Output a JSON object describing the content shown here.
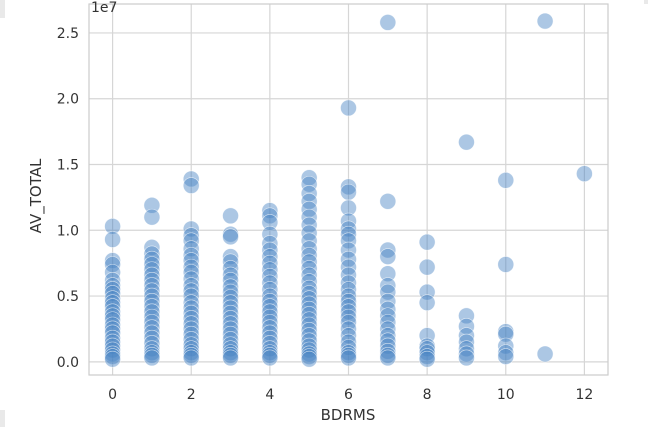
{
  "chart_data": {
    "type": "scatter",
    "title": "",
    "xlabel": "BDRMS",
    "ylabel": "AV_TOTAL",
    "y_offset_label": "1e7",
    "xlim": [
      -0.6,
      12.6
    ],
    "ylim": [
      -0.1,
      2.72
    ],
    "x_ticks": [
      0,
      2,
      4,
      6,
      8,
      10,
      12
    ],
    "x_tick_labels": [
      "0",
      "2",
      "4",
      "6",
      "8",
      "10",
      "12"
    ],
    "y_ticks": [
      0.0,
      0.5,
      1.0,
      1.5,
      2.0,
      2.5
    ],
    "y_tick_labels": [
      "0.0",
      "0.5",
      "1.0",
      "1.5",
      "2.0",
      "2.5"
    ],
    "grid": true,
    "marker_color": "#4682c4",
    "series": [
      {
        "values": [
          [
            0,
            1.03
          ],
          [
            0,
            0.93
          ],
          [
            0,
            0.77
          ],
          [
            0,
            0.74
          ],
          [
            0,
            0.68
          ],
          [
            0,
            0.62
          ],
          [
            0,
            0.58
          ],
          [
            0,
            0.55
          ],
          [
            0,
            0.52
          ],
          [
            0,
            0.48
          ],
          [
            0,
            0.45
          ],
          [
            0,
            0.42
          ],
          [
            0,
            0.38
          ],
          [
            0,
            0.35
          ],
          [
            0,
            0.32
          ],
          [
            0,
            0.28
          ],
          [
            0,
            0.25
          ],
          [
            0,
            0.22
          ],
          [
            0,
            0.18
          ],
          [
            0,
            0.15
          ],
          [
            0,
            0.12
          ],
          [
            0,
            0.09
          ],
          [
            0,
            0.06
          ],
          [
            0,
            0.04
          ],
          [
            0,
            0.02
          ],
          [
            1,
            1.19
          ],
          [
            1,
            1.1
          ],
          [
            1,
            0.87
          ],
          [
            1,
            0.82
          ],
          [
            1,
            0.78
          ],
          [
            1,
            0.74
          ],
          [
            1,
            0.7
          ],
          [
            1,
            0.66
          ],
          [
            1,
            0.62
          ],
          [
            1,
            0.58
          ],
          [
            1,
            0.54
          ],
          [
            1,
            0.5
          ],
          [
            1,
            0.46
          ],
          [
            1,
            0.42
          ],
          [
            1,
            0.38
          ],
          [
            1,
            0.34
          ],
          [
            1,
            0.3
          ],
          [
            1,
            0.26
          ],
          [
            1,
            0.22
          ],
          [
            1,
            0.18
          ],
          [
            1,
            0.14
          ],
          [
            1,
            0.1
          ],
          [
            1,
            0.07
          ],
          [
            1,
            0.05
          ],
          [
            1,
            0.03
          ],
          [
            2,
            1.39
          ],
          [
            2,
            1.34
          ],
          [
            2,
            1.01
          ],
          [
            2,
            0.96
          ],
          [
            2,
            0.92
          ],
          [
            2,
            0.86
          ],
          [
            2,
            0.81
          ],
          [
            2,
            0.77
          ],
          [
            2,
            0.72
          ],
          [
            2,
            0.68
          ],
          [
            2,
            0.63
          ],
          [
            2,
            0.58
          ],
          [
            2,
            0.54
          ],
          [
            2,
            0.5
          ],
          [
            2,
            0.45
          ],
          [
            2,
            0.41
          ],
          [
            2,
            0.37
          ],
          [
            2,
            0.33
          ],
          [
            2,
            0.29
          ],
          [
            2,
            0.25
          ],
          [
            2,
            0.21
          ],
          [
            2,
            0.17
          ],
          [
            2,
            0.13
          ],
          [
            2,
            0.1
          ],
          [
            2,
            0.07
          ],
          [
            2,
            0.05
          ],
          [
            2,
            0.03
          ],
          [
            3,
            1.11
          ],
          [
            3,
            0.97
          ],
          [
            3,
            0.95
          ],
          [
            3,
            0.8
          ],
          [
            3,
            0.76
          ],
          [
            3,
            0.71
          ],
          [
            3,
            0.66
          ],
          [
            3,
            0.62
          ],
          [
            3,
            0.57
          ],
          [
            3,
            0.53
          ],
          [
            3,
            0.49
          ],
          [
            3,
            0.45
          ],
          [
            3,
            0.41
          ],
          [
            3,
            0.37
          ],
          [
            3,
            0.33
          ],
          [
            3,
            0.29
          ],
          [
            3,
            0.25
          ],
          [
            3,
            0.21
          ],
          [
            3,
            0.17
          ],
          [
            3,
            0.13
          ],
          [
            3,
            0.1
          ],
          [
            3,
            0.07
          ],
          [
            3,
            0.05
          ],
          [
            3,
            0.03
          ],
          [
            4,
            1.15
          ],
          [
            4,
            1.11
          ],
          [
            4,
            1.06
          ],
          [
            4,
            0.97
          ],
          [
            4,
            0.9
          ],
          [
            4,
            0.85
          ],
          [
            4,
            0.8
          ],
          [
            4,
            0.75
          ],
          [
            4,
            0.7
          ],
          [
            4,
            0.65
          ],
          [
            4,
            0.6
          ],
          [
            4,
            0.55
          ],
          [
            4,
            0.5
          ],
          [
            4,
            0.46
          ],
          [
            4,
            0.42
          ],
          [
            4,
            0.38
          ],
          [
            4,
            0.34
          ],
          [
            4,
            0.3
          ],
          [
            4,
            0.26
          ],
          [
            4,
            0.22
          ],
          [
            4,
            0.18
          ],
          [
            4,
            0.14
          ],
          [
            4,
            0.1
          ],
          [
            4,
            0.07
          ],
          [
            4,
            0.05
          ],
          [
            4,
            0.03
          ],
          [
            5,
            1.4
          ],
          [
            5,
            1.35
          ],
          [
            5,
            1.28
          ],
          [
            5,
            1.22
          ],
          [
            5,
            1.16
          ],
          [
            5,
            1.1
          ],
          [
            5,
            1.04
          ],
          [
            5,
            0.98
          ],
          [
            5,
            0.92
          ],
          [
            5,
            0.86
          ],
          [
            5,
            0.81
          ],
          [
            5,
            0.76
          ],
          [
            5,
            0.71
          ],
          [
            5,
            0.66
          ],
          [
            5,
            0.61
          ],
          [
            5,
            0.56
          ],
          [
            5,
            0.52
          ],
          [
            5,
            0.48
          ],
          [
            5,
            0.44
          ],
          [
            5,
            0.4
          ],
          [
            5,
            0.36
          ],
          [
            5,
            0.32
          ],
          [
            5,
            0.28
          ],
          [
            5,
            0.24
          ],
          [
            5,
            0.2
          ],
          [
            5,
            0.16
          ],
          [
            5,
            0.12
          ],
          [
            5,
            0.09
          ],
          [
            5,
            0.06
          ],
          [
            5,
            0.04
          ],
          [
            5,
            0.02
          ],
          [
            6,
            1.93
          ],
          [
            6,
            1.33
          ],
          [
            6,
            1.29
          ],
          [
            6,
            1.17
          ],
          [
            6,
            1.07
          ],
          [
            6,
            1.01
          ],
          [
            6,
            0.97
          ],
          [
            6,
            0.92
          ],
          [
            6,
            0.85
          ],
          [
            6,
            0.78
          ],
          [
            6,
            0.72
          ],
          [
            6,
            0.66
          ],
          [
            6,
            0.6
          ],
          [
            6,
            0.55
          ],
          [
            6,
            0.5
          ],
          [
            6,
            0.46
          ],
          [
            6,
            0.42
          ],
          [
            6,
            0.38
          ],
          [
            6,
            0.34
          ],
          [
            6,
            0.3
          ],
          [
            6,
            0.25
          ],
          [
            6,
            0.2
          ],
          [
            6,
            0.15
          ],
          [
            6,
            0.11
          ],
          [
            6,
            0.07
          ],
          [
            6,
            0.05
          ],
          [
            6,
            0.03
          ],
          [
            7,
            2.58
          ],
          [
            7,
            1.22
          ],
          [
            7,
            0.85
          ],
          [
            7,
            0.8
          ],
          [
            7,
            0.67
          ],
          [
            7,
            0.58
          ],
          [
            7,
            0.53
          ],
          [
            7,
            0.46
          ],
          [
            7,
            0.4
          ],
          [
            7,
            0.35
          ],
          [
            7,
            0.3
          ],
          [
            7,
            0.25
          ],
          [
            7,
            0.2
          ],
          [
            7,
            0.16
          ],
          [
            7,
            0.12
          ],
          [
            7,
            0.08
          ],
          [
            7,
            0.05
          ],
          [
            7,
            0.03
          ],
          [
            8,
            0.91
          ],
          [
            8,
            0.72
          ],
          [
            8,
            0.53
          ],
          [
            8,
            0.45
          ],
          [
            8,
            0.2
          ],
          [
            8,
            0.12
          ],
          [
            8,
            0.1
          ],
          [
            8,
            0.07
          ],
          [
            8,
            0.04
          ],
          [
            8,
            0.02
          ],
          [
            9,
            1.67
          ],
          [
            9,
            0.35
          ],
          [
            9,
            0.27
          ],
          [
            9,
            0.2
          ],
          [
            9,
            0.15
          ],
          [
            9,
            0.1
          ],
          [
            9,
            0.06
          ],
          [
            9,
            0.03
          ],
          [
            10,
            1.38
          ],
          [
            10,
            0.74
          ],
          [
            10,
            0.23
          ],
          [
            10,
            0.21
          ],
          [
            10,
            0.12
          ],
          [
            10,
            0.07
          ],
          [
            10,
            0.04
          ],
          [
            11,
            2.59
          ],
          [
            11,
            0.06
          ],
          [
            12,
            1.43
          ]
        ]
      }
    ]
  }
}
